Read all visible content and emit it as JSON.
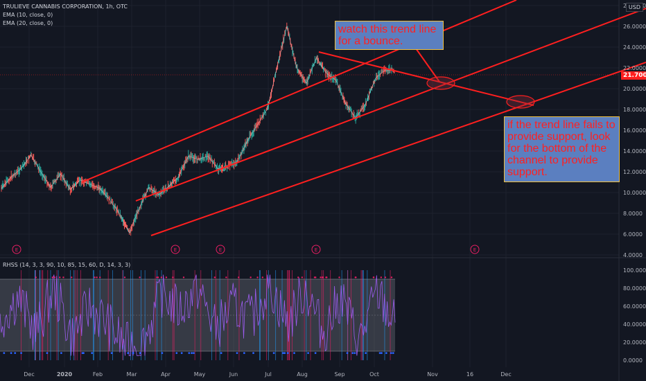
{
  "header": {
    "symbol": "TRULIEVE CANNABIS CORPORATION, 1h, OTC",
    "ema10": "EMA (10, close, 0)",
    "ema20": "EMA (20, close, 0)",
    "rhss": "RHSS (14, 3, 3, 90, 10, 85, 15, 60, D, 14, 3, 3)",
    "currency": "USD"
  },
  "current_price": "21.7000",
  "annotations": {
    "callout1": "watch this trend line for a bounce.",
    "callout2": "if the trend line fails to provide support, look for the bottom of the channel to provide support."
  },
  "earnings_marker": "E",
  "colors": {
    "background": "#131722",
    "trend_line": "#ff1f1f",
    "osc_line": "#9c5cf0",
    "osc_band": "#787b86",
    "callout_bg": "#5b7fc0"
  },
  "chart_data": [
    {
      "type": "line",
      "title": "TRULIEVE CANNABIS CORPORATION, 1h, OTC",
      "x_tick_labels": [
        "Dec",
        "2020",
        "Feb",
        "Mar",
        "Apr",
        "May",
        "Jun",
        "Jul",
        "Aug",
        "Sep",
        "Oct",
        "Nov",
        "16",
        "Dec"
      ],
      "y_tick_labels": [
        "28.0000",
        "26.0000",
        "24.0000",
        "22.0000",
        "20.0000",
        "18.0000",
        "16.0000",
        "14.0000",
        "12.0000",
        "10.0000",
        "8.0000",
        "6.0000",
        "4.0000"
      ],
      "ylim": [
        4,
        28
      ],
      "series": [
        {
          "x": [
            "Nov 15",
            "Nov 25",
            "Dec 5",
            "Dec 15",
            "Dec 25",
            "Jan 5",
            "Jan 15",
            "Jan 25",
            "Feb 5",
            "Feb 15",
            "Feb 25",
            "Mar 5",
            "Mar 15",
            "Mar 20",
            "Mar 30",
            "Apr 10",
            "Apr 20",
            "May 1",
            "May 10",
            "May 20",
            "Jun 1",
            "Jun 10",
            "Jun 20",
            "Jul 1",
            "Jul 10",
            "Jul 15",
            "Jul 25",
            "Aug 1",
            "Aug 5",
            "Aug 10",
            "Aug 15",
            "Aug 20",
            "Aug 25",
            "Sep 1",
            "Sep 10",
            "Sep 20",
            "Sep 25",
            "Oct 1",
            "Oct 5",
            "Oct 10",
            "Oct 15"
          ],
          "values": [
            10.4,
            11.5,
            12.3,
            13.6,
            12.0,
            10.5,
            11.8,
            10.3,
            11.2,
            10.8,
            10.4,
            9.3,
            8.0,
            6.1,
            8.5,
            10.5,
            9.8,
            10.6,
            11.5,
            13.5,
            13.2,
            13.5,
            12.3,
            12.5,
            13.0,
            15.0,
            16.5,
            18.0,
            22.0,
            26.0,
            22.0,
            20.5,
            23.0,
            21.5,
            20.8,
            18.5,
            17.2,
            18.5,
            21.0,
            21.8,
            21.7
          ]
        }
      ],
      "trend_lines": [
        {
          "name": "channel-top",
          "from": [
            "Jan 20",
            11.1
          ],
          "to": [
            "Dec 10",
            30.5
          ]
        },
        {
          "name": "channel-middle",
          "from": [
            "Mar 3",
            9.2
          ],
          "to": [
            "Dec 31",
            27.2
          ]
        },
        {
          "name": "channel-bottom",
          "from": [
            "Mar 20",
            5.8
          ],
          "to": [
            "Dec 31",
            22.0
          ]
        },
        {
          "name": "descending-trend-line",
          "from": [
            "Aug 12",
            23.9
          ],
          "to": [
            "Nov 23",
            19.0
          ]
        }
      ],
      "earnings_dates": [
        "Nov 20",
        "Mar 28",
        "May 12",
        "Aug 12",
        "Nov 16"
      ]
    },
    {
      "type": "line",
      "title": "RHSS (14, 3, 3, 90, 10, 85, 15, 60, D, 14, 3, 3)",
      "y_tick_labels": [
        "100.0000",
        "80.0000",
        "60.0000",
        "40.0000",
        "20.0000",
        "0.0000"
      ],
      "ylim": [
        0,
        100
      ],
      "band": [
        10,
        90
      ],
      "midline": 50,
      "series": [
        {
          "x": [
            "Nov 15",
            "Dec 1",
            "Dec 15",
            "Jan 1",
            "Jan 15",
            "Feb 1",
            "Feb 15",
            "Mar 1",
            "Mar 15",
            "Apr 1",
            "Apr 15",
            "May 1",
            "May 15",
            "Jun 1",
            "Jun 15",
            "Jul 1",
            "Jul 15",
            "Aug 1",
            "Aug 15",
            "Sep 1",
            "Sep 15",
            "Oct 1",
            "Oct 15"
          ],
          "values": [
            45,
            70,
            30,
            80,
            25,
            60,
            40,
            15,
            20,
            75,
            55,
            80,
            35,
            60,
            45,
            85,
            40,
            80,
            30,
            70,
            20,
            75,
            40
          ]
        }
      ]
    }
  ]
}
